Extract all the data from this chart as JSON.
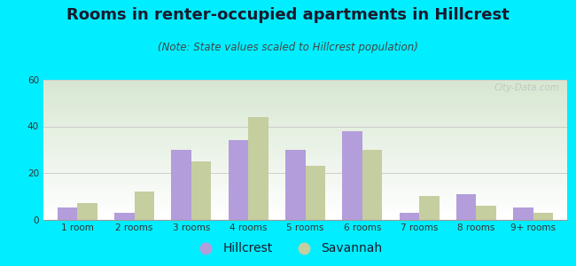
{
  "title": "Rooms in renter-occupied apartments in Hillcrest",
  "subtitle": "(Note: State values scaled to Hillcrest population)",
  "categories": [
    "1 room",
    "2 rooms",
    "3 rooms",
    "4 rooms",
    "5 rooms",
    "6 rooms",
    "7 rooms",
    "8 rooms",
    "9+ rooms"
  ],
  "hillcrest_values": [
    5,
    3,
    30,
    34,
    30,
    38,
    3,
    11,
    5
  ],
  "savannah_values": [
    7,
    12,
    25,
    44,
    23,
    30,
    10,
    6,
    3
  ],
  "hillcrest_color": "#b39ddb",
  "savannah_color": "#c5ce9e",
  "ylim": [
    0,
    60
  ],
  "yticks": [
    0,
    20,
    40,
    60
  ],
  "background_outer": "#00eeff",
  "grid_color": "#cccccc",
  "title_fontsize": 13,
  "subtitle_fontsize": 8.5,
  "tick_fontsize": 7.5,
  "legend_fontsize": 10,
  "bar_width": 0.35,
  "watermark_text": "City-Data.com"
}
